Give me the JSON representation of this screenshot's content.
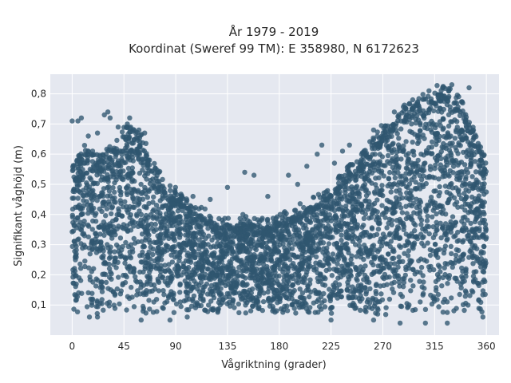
{
  "chart_data": {
    "type": "scatter",
    "title": "År 1979 - 2019",
    "subtitle": "Koordinat (Sweref 99 TM): E 358980, N 6172623",
    "xlabel": "Vågriktning (grader)",
    "ylabel": "Signifikant våghöjd (m)",
    "xlim": [
      -19,
      371
    ],
    "ylim": [
      0.0,
      0.865
    ],
    "x_ticks": [
      0,
      45,
      90,
      135,
      180,
      225,
      270,
      315,
      360
    ],
    "x_tick_labels": [
      "0",
      "45",
      "90",
      "135",
      "180",
      "225",
      "270",
      "315",
      "360"
    ],
    "y_ticks": [
      0.1,
      0.2,
      0.3,
      0.4,
      0.5,
      0.6,
      0.7,
      0.8
    ],
    "y_tick_labels": [
      "0,1",
      "0,2",
      "0,3",
      "0,4",
      "0,5",
      "0,6",
      "0,7",
      "0,8"
    ],
    "grid": true,
    "background": "#e5e8f0",
    "series": [
      {
        "color": "#2f5670",
        "envelope": {
          "x": [
            0,
            5,
            10,
            15,
            20,
            25,
            30,
            35,
            40,
            45,
            50,
            55,
            60,
            65,
            70,
            75,
            80,
            85,
            90,
            95,
            100,
            105,
            110,
            115,
            120,
            125,
            130,
            135,
            140,
            145,
            150,
            155,
            160,
            165,
            170,
            175,
            180,
            185,
            190,
            195,
            200,
            205,
            210,
            215,
            220,
            225,
            230,
            235,
            240,
            245,
            250,
            255,
            260,
            265,
            270,
            275,
            280,
            285,
            290,
            295,
            300,
            305,
            310,
            315,
            320,
            325,
            330,
            335,
            340,
            345,
            350,
            355,
            360
          ],
          "ymin": [
            0.07,
            0.07,
            0.07,
            0.07,
            0.07,
            0.07,
            0.07,
            0.07,
            0.07,
            0.07,
            0.07,
            0.07,
            0.07,
            0.07,
            0.07,
            0.07,
            0.07,
            0.07,
            0.07,
            0.07,
            0.07,
            0.07,
            0.07,
            0.07,
            0.07,
            0.07,
            0.07,
            0.07,
            0.07,
            0.07,
            0.07,
            0.07,
            0.07,
            0.07,
            0.07,
            0.07,
            0.07,
            0.07,
            0.07,
            0.07,
            0.07,
            0.07,
            0.07,
            0.07,
            0.07,
            0.07,
            0.07,
            0.07,
            0.07,
            0.07,
            0.07,
            0.07,
            0.07,
            0.07,
            0.06,
            0.06,
            0.06,
            0.06,
            0.06,
            0.06,
            0.06,
            0.06,
            0.06,
            0.06,
            0.06,
            0.06,
            0.06,
            0.06,
            0.06,
            0.07,
            0.07,
            0.07,
            0.07
          ],
          "ymax": [
            0.56,
            0.58,
            0.6,
            0.6,
            0.58,
            0.58,
            0.6,
            0.62,
            0.64,
            0.66,
            0.66,
            0.66,
            0.64,
            0.6,
            0.56,
            0.52,
            0.49,
            0.47,
            0.46,
            0.44,
            0.42,
            0.41,
            0.4,
            0.39,
            0.38,
            0.37,
            0.36,
            0.36,
            0.36,
            0.37,
            0.37,
            0.37,
            0.36,
            0.36,
            0.36,
            0.36,
            0.37,
            0.38,
            0.39,
            0.4,
            0.41,
            0.42,
            0.43,
            0.44,
            0.45,
            0.47,
            0.49,
            0.51,
            0.53,
            0.55,
            0.57,
            0.6,
            0.62,
            0.65,
            0.67,
            0.69,
            0.7,
            0.72,
            0.74,
            0.76,
            0.77,
            0.78,
            0.79,
            0.8,
            0.8,
            0.8,
            0.79,
            0.77,
            0.74,
            0.7,
            0.65,
            0.6,
            0.55
          ]
        },
        "outliers": [
          {
            "x": 0,
            "y": 0.71
          },
          {
            "x": 5,
            "y": 0.71
          },
          {
            "x": 8,
            "y": 0.72
          },
          {
            "x": 28,
            "y": 0.73
          },
          {
            "x": 31,
            "y": 0.74
          },
          {
            "x": 33,
            "y": 0.72
          },
          {
            "x": 48,
            "y": 0.7
          },
          {
            "x": 50,
            "y": 0.72
          },
          {
            "x": 14,
            "y": 0.66
          },
          {
            "x": 22,
            "y": 0.67
          },
          {
            "x": 40,
            "y": 0.69
          },
          {
            "x": 58,
            "y": 0.68
          },
          {
            "x": 63,
            "y": 0.67
          },
          {
            "x": 75,
            "y": 0.49
          },
          {
            "x": 150,
            "y": 0.54
          },
          {
            "x": 158,
            "y": 0.53
          },
          {
            "x": 170,
            "y": 0.46
          },
          {
            "x": 188,
            "y": 0.53
          },
          {
            "x": 196,
            "y": 0.5
          },
          {
            "x": 204,
            "y": 0.56
          },
          {
            "x": 213,
            "y": 0.6
          },
          {
            "x": 217,
            "y": 0.63
          },
          {
            "x": 228,
            "y": 0.57
          },
          {
            "x": 235,
            "y": 0.61
          },
          {
            "x": 241,
            "y": 0.63
          },
          {
            "x": 330,
            "y": 0.83
          },
          {
            "x": 322,
            "y": 0.82
          },
          {
            "x": 345,
            "y": 0.82
          },
          {
            "x": 135,
            "y": 0.49
          },
          {
            "x": 120,
            "y": 0.45
          },
          {
            "x": 105,
            "y": 0.46
          },
          {
            "x": 262,
            "y": 0.68
          },
          {
            "x": 280,
            "y": 0.74
          },
          {
            "x": 296,
            "y": 0.78
          },
          {
            "x": 15,
            "y": 0.06
          },
          {
            "x": 22,
            "y": 0.06
          },
          {
            "x": 60,
            "y": 0.05
          },
          {
            "x": 85,
            "y": 0.05
          },
          {
            "x": 100,
            "y": 0.06
          },
          {
            "x": 225,
            "y": 0.05
          },
          {
            "x": 262,
            "y": 0.05
          },
          {
            "x": 285,
            "y": 0.04
          },
          {
            "x": 307,
            "y": 0.04
          },
          {
            "x": 326,
            "y": 0.04
          },
          {
            "x": 357,
            "y": 0.06
          }
        ]
      }
    ]
  }
}
